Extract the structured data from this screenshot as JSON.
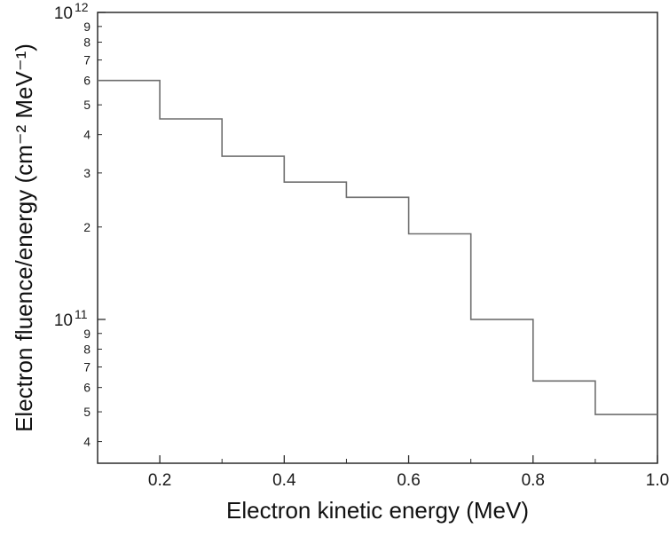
{
  "chart_data": {
    "type": "step-histogram",
    "title": "",
    "xlabel": "Electron kinetic energy (MeV)",
    "ylabel": "Electron fluence/energy (cm⁻² MeV⁻¹)",
    "xlim": [
      0.1,
      1.0
    ],
    "ylim": [
      34000000000.0,
      1000000000000.0
    ],
    "yscale": "log",
    "grid": false,
    "legend": null,
    "x_major_ticks": [
      0.2,
      0.4,
      0.6,
      0.8,
      1.0
    ],
    "x_major_labels": [
      "0.2",
      "0.4",
      "0.6",
      "0.8",
      "1.0"
    ],
    "x_minor_ticks": [
      0.3,
      0.5,
      0.7,
      0.9
    ],
    "y_ticks": [
      {
        "v": 1000000000000.0,
        "base": "10",
        "exp": "12",
        "major": true
      },
      {
        "v": 900000000000.0,
        "label": "9"
      },
      {
        "v": 800000000000.0,
        "label": "8"
      },
      {
        "v": 700000000000.0,
        "label": "7"
      },
      {
        "v": 600000000000.0,
        "label": "6"
      },
      {
        "v": 500000000000.0,
        "label": "5"
      },
      {
        "v": 400000000000.0,
        "label": "4"
      },
      {
        "v": 300000000000.0,
        "label": "3"
      },
      {
        "v": 200000000000.0,
        "label": "2"
      },
      {
        "v": 100000000000.0,
        "base": "10",
        "exp": "11",
        "major": true
      },
      {
        "v": 90000000000.0,
        "label": "9"
      },
      {
        "v": 80000000000.0,
        "label": "8"
      },
      {
        "v": 70000000000.0,
        "label": "7"
      },
      {
        "v": 60000000000.0,
        "label": "6"
      },
      {
        "v": 50000000000.0,
        "label": "5"
      },
      {
        "v": 40000000000.0,
        "label": "4"
      }
    ],
    "bins": {
      "edges": [
        0.1,
        0.2,
        0.3,
        0.4,
        0.5,
        0.6,
        0.7,
        0.8,
        0.9,
        1.0
      ],
      "values": [
        600000000000.0,
        450000000000.0,
        340000000000.0,
        280000000000.0,
        250000000000.0,
        190000000000.0,
        100000000000.0,
        63000000000.0,
        49000000000.0
      ]
    },
    "line_color": "#6e6e6e",
    "axis_color": "#2b2b2b",
    "text_color": "#1a1a1a"
  }
}
